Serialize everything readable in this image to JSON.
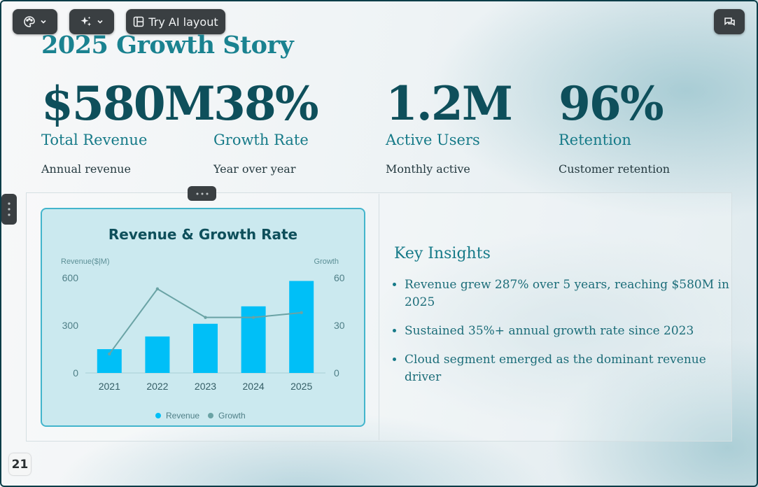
{
  "toolbar": {
    "theme_icon": "palette-icon",
    "ai_icon": "sparkle-icon",
    "ai_layout_label": "Try AI layout",
    "comment_icon": "comment-icon"
  },
  "slide": {
    "title": "2025 Growth Story",
    "stats": [
      {
        "value": "$580M",
        "label": "Total Revenue",
        "desc": "Annual revenue"
      },
      {
        "value": "38%",
        "label": "Growth Rate",
        "desc": "Year over year"
      },
      {
        "value": "1.2M",
        "label": "Active Users",
        "desc": "Monthly active"
      },
      {
        "value": "96%",
        "label": "Retention",
        "desc": "Customer retention"
      }
    ],
    "insights_title": "Key Insights",
    "insights": [
      "Revenue grew 287% over 5 years, reaching $580M in 2025",
      "Sustained 35%+ annual growth rate since 2023",
      "Cloud segment emerged as the dominant revenue driver"
    ]
  },
  "page_number": "21",
  "colors": {
    "bar": "#00bff7",
    "line": "#6aa3a5",
    "title": "#1a8290",
    "stat_value": "#0e4f5b",
    "toolbar_bg": "#3a3f42"
  },
  "chart_data": {
    "type": "bar",
    "title": "Revenue & Growth Rate",
    "categories": [
      "2021",
      "2022",
      "2023",
      "2024",
      "2025"
    ],
    "series": [
      {
        "name": "Revenue",
        "type": "bar",
        "axis": "left",
        "values": [
          150,
          230,
          310,
          420,
          580
        ]
      },
      {
        "name": "Growth",
        "type": "line",
        "axis": "right",
        "values": [
          12,
          53,
          35,
          35,
          38
        ]
      }
    ],
    "ylabel": "Revenue($|M)",
    "y2label": "Growth",
    "ylim": [
      0,
      600
    ],
    "y2lim": [
      0,
      60
    ],
    "yticks": [
      0,
      300,
      600
    ],
    "y2ticks": [
      0,
      30,
      60
    ],
    "grid": false,
    "legend": "bottom"
  }
}
